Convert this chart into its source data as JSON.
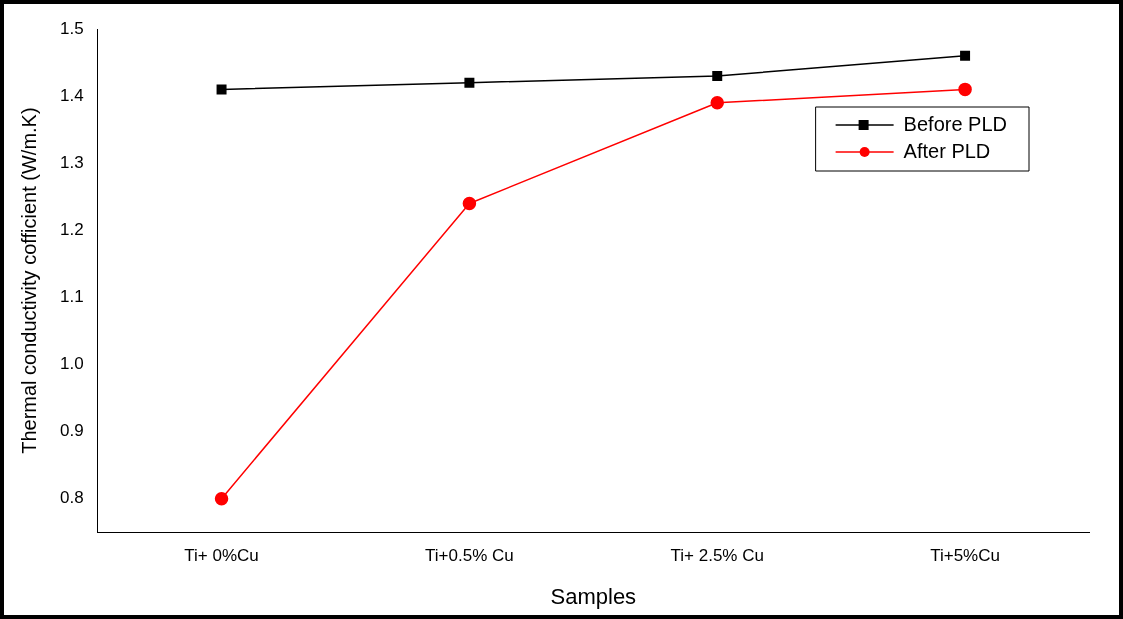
{
  "chart_data": {
    "type": "line",
    "xlabel": "Samples",
    "ylabel": "Thermal conductivity cofficient (W/m.K)",
    "categories": [
      "Ti+ 0%Cu",
      "Ti+0.5% Cu",
      "Ti+ 2.5% Cu",
      "Ti+5%Cu"
    ],
    "series": [
      {
        "name": "Before PLD",
        "color": "#000000",
        "marker": "square",
        "values": [
          1.41,
          1.42,
          1.43,
          1.46
        ]
      },
      {
        "name": "After PLD",
        "color": "#ff0000",
        "marker": "circle",
        "values": [
          0.8,
          1.24,
          1.39,
          1.41
        ]
      }
    ],
    "ylim": [
      0.75,
      1.5
    ],
    "yticks": [
      0.8,
      0.9,
      {
        "value": 1.0,
        "label": "1.0"
      },
      1.1,
      1.2,
      1.3,
      1.4,
      1.5
    ],
    "grid": false,
    "legend": "top right",
    "line_style": "solid"
  }
}
